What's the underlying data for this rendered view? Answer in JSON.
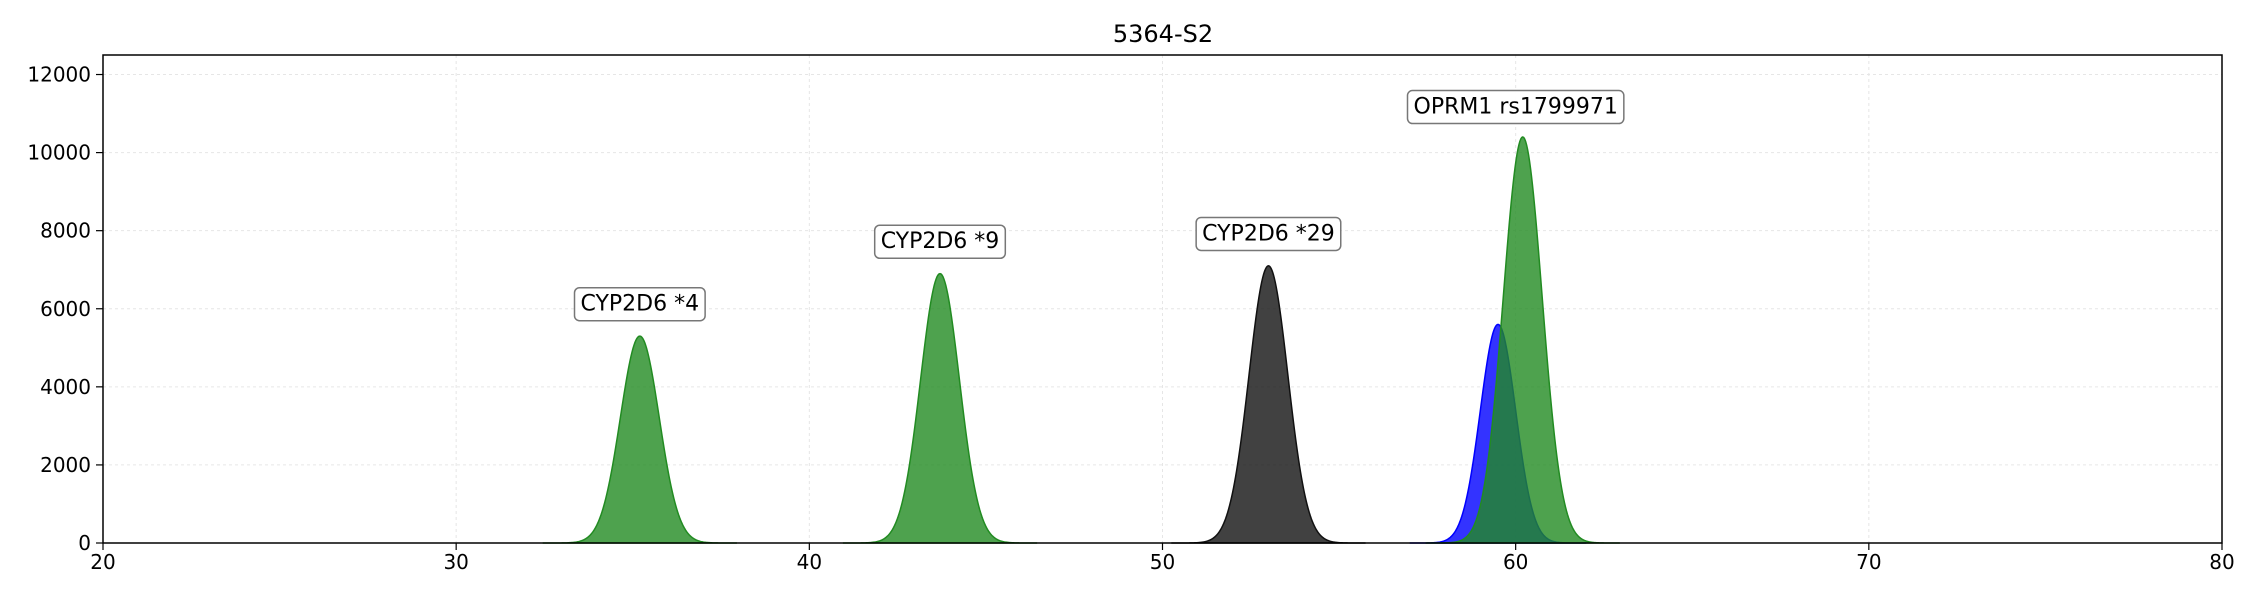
{
  "chart_data": {
    "type": "area",
    "title": "5364-S2",
    "xlabel": "",
    "ylabel": "",
    "xlim": [
      20,
      80
    ],
    "ylim": [
      0,
      12500
    ],
    "x_ticks": [
      20,
      30,
      40,
      50,
      60,
      70,
      80
    ],
    "y_ticks": [
      0,
      2000,
      4000,
      6000,
      8000,
      10000,
      12000
    ],
    "grid": true,
    "legend": "none",
    "series": [
      {
        "color": "#228B22",
        "center": 35.2,
        "sigma": 0.55,
        "peak": 5300
      },
      {
        "color": "#228B22",
        "center": 43.7,
        "sigma": 0.55,
        "peak": 6900
      },
      {
        "color": "#111111",
        "center": 53.0,
        "sigma": 0.55,
        "peak": 7100
      },
      {
        "color": "#0000FF",
        "center": 59.5,
        "sigma": 0.5,
        "peak": 5600
      },
      {
        "color": "#228B22",
        "center": 60.2,
        "sigma": 0.55,
        "peak": 10400
      }
    ],
    "annotations": [
      {
        "text": "CYP2D6 *4",
        "x": 35.2,
        "y": 5950
      },
      {
        "text": "CYP2D6 *9",
        "x": 43.7,
        "y": 7550
      },
      {
        "text": "CYP2D6 *29",
        "x": 53.0,
        "y": 7750
      },
      {
        "text": "OPRM1 rs1799971",
        "x": 60.0,
        "y": 11000
      }
    ]
  }
}
